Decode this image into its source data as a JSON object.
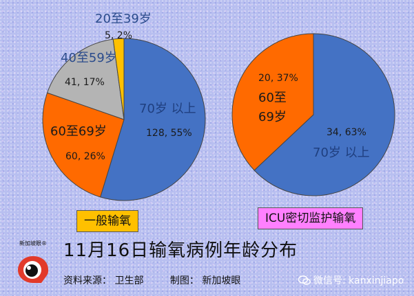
{
  "colors": {
    "blue": "#4472c4",
    "orange": "#ff6a00",
    "gray": "#b4b4b4",
    "yellow": "#ffc000",
    "legend_left_bg": "#ffc000",
    "legend_right_bg": "#ff80ff",
    "logo_red": "#e23a2a",
    "label_blue": "#1f3f7f",
    "label_gray_blue": "#2a4b8c"
  },
  "chart_data": [
    {
      "type": "pie",
      "legend": "一般输氧",
      "slices": [
        {
          "category": "70岁 以上",
          "value": 128,
          "percent": 55,
          "label": "128, 55%"
        },
        {
          "category": "60至69岁",
          "value": 60,
          "percent": 26,
          "label": "60, 26%"
        },
        {
          "category": "40至59岁",
          "value": 41,
          "percent": 17,
          "label": "41, 17%"
        },
        {
          "category": "20至39岁",
          "value": 5,
          "percent": 2,
          "label": "5, 2%"
        }
      ]
    },
    {
      "type": "pie",
      "legend": "ICU密切监护输氧",
      "slices": [
        {
          "category": "70岁 以上",
          "value": 34,
          "percent": 63,
          "label": "34, 63%"
        },
        {
          "category": "60至 69岁",
          "value": 20,
          "percent": 37,
          "label": "20, 37%"
        }
      ]
    }
  ],
  "title": "11月16日输氧病例年龄分布",
  "footer": {
    "source": "资料来源： 卫生部",
    "maker": "制图： 新加坡眼",
    "logo_text": "新加坡眼®",
    "wechat": "微信号: kanxinjiapo"
  }
}
